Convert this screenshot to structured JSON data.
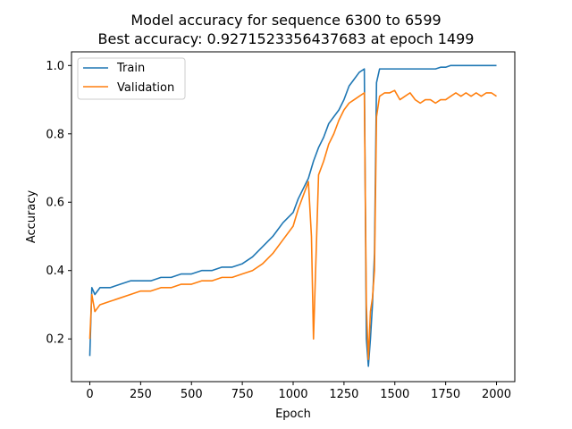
{
  "chart_data": {
    "type": "line",
    "title": "Model accuracy for sequence 6300 to 6599",
    "subtitle": "Best accuracy: 0.9271523356437683 at epoch 1499",
    "xlabel": "Epoch",
    "ylabel": "Accuracy",
    "xlim": [
      -90,
      2090
    ],
    "ylim": [
      0.075,
      1.04
    ],
    "xticks": [
      0,
      250,
      500,
      750,
      1000,
      1250,
      1500,
      1750,
      2000
    ],
    "xtick_labels": [
      "0",
      "250",
      "500",
      "750",
      "1000",
      "1250",
      "1500",
      "1750",
      "2000"
    ],
    "yticks": [
      0.2,
      0.4,
      0.6,
      0.8,
      1.0
    ],
    "ytick_labels": [
      "0.2",
      "0.4",
      "0.6",
      "0.8",
      "1.0"
    ],
    "grid": false,
    "legend_position": "top-left",
    "x": [
      0,
      10,
      25,
      50,
      100,
      150,
      200,
      250,
      300,
      350,
      400,
      450,
      500,
      550,
      600,
      650,
      700,
      750,
      800,
      850,
      900,
      950,
      1000,
      1025,
      1050,
      1075,
      1090,
      1100,
      1125,
      1150,
      1175,
      1200,
      1225,
      1250,
      1275,
      1300,
      1325,
      1350,
      1360,
      1370,
      1380,
      1390,
      1400,
      1410,
      1425,
      1450,
      1475,
      1499,
      1525,
      1550,
      1575,
      1600,
      1625,
      1650,
      1675,
      1700,
      1725,
      1750,
      1775,
      1800,
      1825,
      1850,
      1875,
      1900,
      1925,
      1950,
      1975,
      2000
    ],
    "series": [
      {
        "name": "Train",
        "color": "#1f77b4",
        "values": [
          0.15,
          0.35,
          0.33,
          0.35,
          0.35,
          0.36,
          0.37,
          0.37,
          0.37,
          0.38,
          0.38,
          0.39,
          0.39,
          0.4,
          0.4,
          0.41,
          0.41,
          0.42,
          0.44,
          0.47,
          0.5,
          0.54,
          0.57,
          0.61,
          0.64,
          0.67,
          0.7,
          0.72,
          0.76,
          0.79,
          0.83,
          0.85,
          0.87,
          0.9,
          0.94,
          0.96,
          0.98,
          0.99,
          0.2,
          0.12,
          0.2,
          0.3,
          0.45,
          0.95,
          0.99,
          0.99,
          0.99,
          0.99,
          0.99,
          0.99,
          0.99,
          0.99,
          0.99,
          0.99,
          0.99,
          0.99,
          0.995,
          0.995,
          1.0,
          1.0,
          1.0,
          1.0,
          1.0,
          1.0,
          1.0,
          1.0,
          1.0,
          1.0
        ]
      },
      {
        "name": "Validation",
        "color": "#ff7f0e",
        "values": [
          0.2,
          0.33,
          0.28,
          0.3,
          0.31,
          0.32,
          0.33,
          0.34,
          0.34,
          0.35,
          0.35,
          0.36,
          0.36,
          0.37,
          0.37,
          0.38,
          0.38,
          0.39,
          0.4,
          0.42,
          0.45,
          0.49,
          0.53,
          0.58,
          0.62,
          0.66,
          0.5,
          0.2,
          0.68,
          0.72,
          0.77,
          0.8,
          0.84,
          0.87,
          0.89,
          0.9,
          0.91,
          0.92,
          0.3,
          0.14,
          0.28,
          0.32,
          0.4,
          0.85,
          0.91,
          0.92,
          0.92,
          0.927,
          0.9,
          0.91,
          0.92,
          0.9,
          0.89,
          0.9,
          0.9,
          0.89,
          0.9,
          0.9,
          0.91,
          0.92,
          0.91,
          0.92,
          0.91,
          0.92,
          0.91,
          0.92,
          0.92,
          0.91
        ]
      }
    ]
  }
}
